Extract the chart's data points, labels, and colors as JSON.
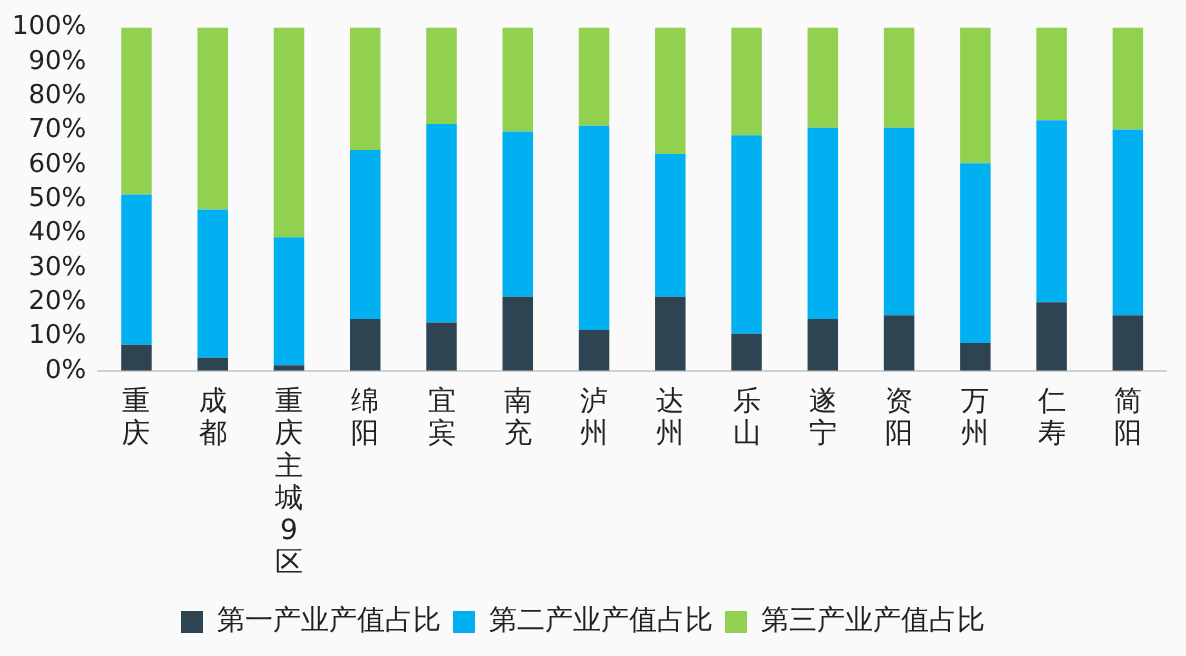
{
  "chart_data": {
    "type": "bar",
    "stacked": true,
    "categories": [
      "重庆",
      "成都",
      "重庆主城9区",
      "绵阳",
      "宜宾",
      "南充",
      "泸州",
      "达州",
      "乐山",
      "遂宁",
      "资阳",
      "万州",
      "仁寿",
      "简阳"
    ],
    "series": [
      {
        "name": "第一产业产值占比",
        "color": "#2e4453",
        "values": [
          7.6,
          3.8,
          1.6,
          15.1,
          14.1,
          21.6,
          11.9,
          21.6,
          10.8,
          15.1,
          16.2,
          8.1,
          20.0,
          16.2
        ]
      },
      {
        "name": "第二产业产值占比",
        "color": "#00b0f0",
        "values": [
          43.8,
          43.2,
          37.3,
          49.2,
          57.8,
          48.1,
          59.5,
          41.6,
          57.8,
          55.7,
          54.6,
          52.4,
          53.0,
          54.1
        ]
      },
      {
        "name": "第三产业产值占比",
        "color": "#92d050",
        "values": [
          48.6,
          53.0,
          61.1,
          35.7,
          28.1,
          30.3,
          28.6,
          36.8,
          31.4,
          29.2,
          29.2,
          39.5,
          27.0,
          29.7
        ]
      }
    ],
    "ylim": [
      0,
      100
    ],
    "yticks": [
      {
        "value": 0,
        "label": "0%"
      },
      {
        "value": 10,
        "label": "10%"
      },
      {
        "value": 20,
        "label": "20%"
      },
      {
        "value": 30,
        "label": "30%"
      },
      {
        "value": 40,
        "label": "40%"
      },
      {
        "value": 50,
        "label": "50%"
      },
      {
        "value": 60,
        "label": "60%"
      },
      {
        "value": 70,
        "label": "70%"
      },
      {
        "value": 80,
        "label": "80%"
      },
      {
        "value": 90,
        "label": "90%"
      },
      {
        "value": 100,
        "label": "100%"
      }
    ],
    "grid": false,
    "legend": "bottom"
  }
}
